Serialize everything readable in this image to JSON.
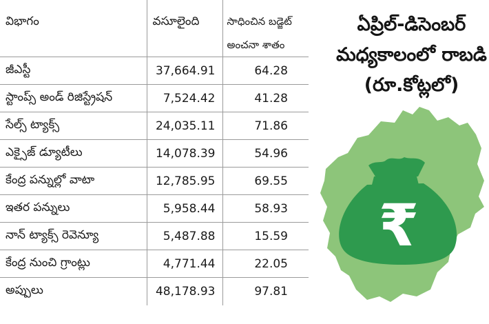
{
  "table": {
    "headers": [
      "విభాగం",
      "వసూలైంది",
      "సాధించిన బడ్జెట్",
      "అంచనా శాతం"
    ],
    "rows": [
      {
        "category": "జీఎస్టీ",
        "collected": "37,664.91",
        "percent": "64.28"
      },
      {
        "category": "స్టాంప్స్ అండ్ రిజిస్ట్రేషన్",
        "collected": "7,524.42",
        "percent": "41.28"
      },
      {
        "category": "సేల్స్ ట్యాక్స్",
        "collected": "24,035.11",
        "percent": "71.86"
      },
      {
        "category": "ఎక్సైజ్ డ్యూటీలు",
        "collected": "14,078.39",
        "percent": "54.96"
      },
      {
        "category": "కేంద్ర పన్నుల్లో వాటా",
        "collected": "12,785.95",
        "percent": "69.55"
      },
      {
        "category": "ఇతర పన్నులు",
        "collected": "5,958.44",
        "percent": "58.93"
      },
      {
        "category": "నాన్ ట్యాక్స్ రెవెన్యూ",
        "collected": "5,487.88",
        "percent": "15.59"
      },
      {
        "category": "కేంద్ర నుంచి గ్రాంట్లు",
        "collected": "4,771.44",
        "percent": "22.05"
      },
      {
        "category": "అప్పులు",
        "collected": "48,178.93",
        "percent": "97.81"
      }
    ]
  },
  "panel": {
    "title_lines": [
      "ఏప్రిల్-డిసెంబర్",
      "మధ్యకాలంలో రాబడి",
      "(రూ.కోట్లలో)"
    ],
    "bag_symbol": "₹",
    "map_color": "#8dc57a",
    "bag_color": "#2e9a4e",
    "icons": [
      "telangana-map-icon",
      "money-bag-icon"
    ]
  }
}
